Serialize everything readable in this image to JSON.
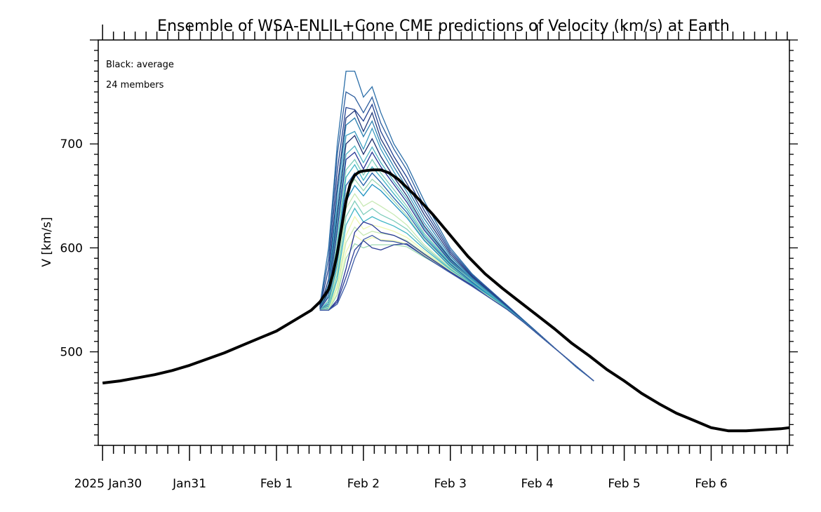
{
  "chart_data": {
    "type": "line",
    "title": "Ensemble of WSA-ENLIL+Cone CME predictions of Velocity (km/s) at Earth",
    "xlabel": "",
    "ylabel": "V [km/s]",
    "x_unit": "day",
    "x_ticks": [
      {
        "x": 0,
        "label": "2025 Jan30"
      },
      {
        "x": 1,
        "label": "Jan31"
      },
      {
        "x": 2,
        "label": "Feb 1"
      },
      {
        "x": 3,
        "label": "Feb 2"
      },
      {
        "x": 4,
        "label": "Feb 3"
      },
      {
        "x": 5,
        "label": "Feb 4"
      },
      {
        "x": 6,
        "label": "Feb 5"
      },
      {
        "x": 7,
        "label": "Feb 6"
      }
    ],
    "y_ticks": [
      500,
      600,
      700
    ],
    "xlim": [
      -0.05,
      7.9
    ],
    "ylim": [
      410,
      800
    ],
    "annotations": [
      "Black: average",
      "24 members"
    ],
    "average": {
      "color": "#000000",
      "x": [
        0,
        0.2,
        0.4,
        0.6,
        0.8,
        1.0,
        1.2,
        1.4,
        1.6,
        1.8,
        2.0,
        2.2,
        2.4,
        2.5,
        2.6,
        2.65,
        2.7,
        2.75,
        2.8,
        2.85,
        2.9,
        2.95,
        3.0,
        3.1,
        3.2,
        3.3,
        3.4,
        3.6,
        3.8,
        4.0,
        4.2,
        4.4,
        4.6,
        4.8,
        5.0,
        5.2,
        5.4,
        5.6,
        5.8,
        6.0,
        6.2,
        6.4,
        6.6,
        6.8,
        7.0,
        7.2,
        7.4,
        7.6,
        7.8,
        7.9
      ],
      "y": [
        470,
        472,
        475,
        478,
        482,
        487,
        493,
        499,
        506,
        513,
        520,
        530,
        540,
        548,
        560,
        575,
        595,
        620,
        645,
        662,
        670,
        673,
        674,
        675,
        675,
        672,
        666,
        650,
        632,
        612,
        592,
        575,
        561,
        548,
        535,
        522,
        508,
        496,
        483,
        472,
        460,
        450,
        441,
        434,
        427,
        424,
        424,
        425,
        426,
        427
      ]
    },
    "series": [
      {
        "color": "#2b6ea8",
        "values": [
          545,
          600,
          700,
          770,
          770,
          745,
          755,
          730,
          700,
          680,
          645,
          600,
          575,
          560,
          545,
          530,
          515,
          500,
          485,
          472
        ]
      },
      {
        "color": "#2e5e9e",
        "values": [
          544,
          590,
          690,
          750,
          745,
          730,
          745,
          720,
          695,
          675,
          640,
          598,
          574,
          560,
          545,
          530,
          515,
          500,
          486,
          472
        ]
      },
      {
        "color": "#1f3f8f",
        "values": [
          543,
          580,
          675,
          735,
          733,
          722,
          738,
          712,
          688,
          668,
          636,
          596,
          573,
          559,
          544,
          529,
          514,
          500,
          486,
          472
        ]
      },
      {
        "color": "#233a7a",
        "values": [
          542,
          570,
          660,
          725,
          732,
          712,
          730,
          705,
          683,
          662,
          632,
          594,
          572,
          558,
          543,
          529,
          514,
          500,
          486,
          472
        ]
      },
      {
        "color": "#2a7fb0",
        "values": [
          542,
          565,
          652,
          718,
          725,
          707,
          722,
          700,
          678,
          658,
          628,
          592,
          571,
          557,
          543,
          529,
          514,
          500,
          486,
          472
        ]
      },
      {
        "color": "#3a9bc0",
        "values": [
          541,
          560,
          640,
          708,
          712,
          695,
          715,
          695,
          673,
          654,
          624,
          590,
          570,
          556,
          542,
          528,
          514,
          500,
          486,
          472
        ]
      },
      {
        "color": "#1d2f6e",
        "values": [
          541,
          558,
          632,
          700,
          708,
          690,
          705,
          688,
          668,
          650,
          621,
          589,
          569,
          556,
          542,
          528,
          514,
          500,
          486,
          472
        ]
      },
      {
        "color": "#4fb3c2",
        "values": [
          541,
          555,
          625,
          690,
          698,
          682,
          697,
          682,
          664,
          647,
          619,
          588,
          569,
          556,
          542,
          528,
          514,
          500,
          486,
          472
        ]
      },
      {
        "color": "#253494",
        "values": [
          541,
          553,
          618,
          685,
          692,
          676,
          692,
          678,
          661,
          644,
          617,
          587,
          568,
          555,
          542,
          528,
          514,
          500,
          486,
          472
        ]
      },
      {
        "color": "#7fcdbb",
        "values": [
          540,
          550,
          610,
          675,
          685,
          670,
          685,
          672,
          656,
          640,
          614,
          586,
          568,
          555,
          542,
          528,
          514,
          500,
          486,
          472
        ]
      },
      {
        "color": "#41b6c4",
        "values": [
          540,
          548,
          602,
          668,
          680,
          665,
          678,
          668,
          652,
          637,
          612,
          585,
          567,
          555,
          542,
          528,
          514,
          500,
          486,
          472
        ]
      },
      {
        "color": "#225ea8",
        "values": [
          540,
          546,
          596,
          660,
          672,
          660,
          672,
          663,
          648,
          634,
          610,
          584,
          567,
          554,
          541,
          528,
          514,
          500,
          486,
          472
        ]
      },
      {
        "color": "#a1dab4",
        "values": [
          540,
          545,
          590,
          652,
          666,
          655,
          666,
          659,
          645,
          631,
          608,
          583,
          566,
          554,
          541,
          528,
          514,
          500,
          486,
          472
        ]
      },
      {
        "color": "#1d91c0",
        "values": [
          540,
          544,
          585,
          645,
          660,
          650,
          661,
          655,
          642,
          629,
          607,
          582,
          566,
          554,
          541,
          528,
          514,
          500,
          486,
          472
        ]
      },
      {
        "color": "#c7e9b4",
        "values": [
          540,
          543,
          580,
          638,
          652,
          640,
          645,
          640,
          632,
          622,
          603,
          581,
          565,
          553,
          541,
          528,
          514,
          500,
          486,
          472
        ]
      },
      {
        "color": "#7fcdbb",
        "values": [
          540,
          542,
          575,
          630,
          645,
          632,
          638,
          632,
          626,
          618,
          601,
          580,
          565,
          553,
          541,
          528,
          514,
          500,
          486,
          472
        ]
      },
      {
        "color": "#41b6c4",
        "values": [
          540,
          542,
          570,
          622,
          638,
          625,
          630,
          626,
          621,
          614,
          599,
          579,
          565,
          553,
          541,
          528,
          514,
          500,
          486,
          472
        ]
      },
      {
        "color": "#edf8b1",
        "values": [
          540,
          541,
          565,
          612,
          630,
          618,
          622,
          620,
          616,
          610,
          597,
          578,
          564,
          553,
          541,
          528,
          514,
          500,
          486,
          472
        ]
      },
      {
        "color": "#c7e9b4",
        "values": [
          540,
          541,
          562,
          605,
          620,
          612,
          616,
          614,
          612,
          607,
          595,
          578,
          564,
          553,
          541,
          528,
          514,
          500,
          486,
          472
        ]
      },
      {
        "color": "#edf8b1",
        "values": [
          540,
          540,
          558,
          596,
          612,
          606,
          610,
          608,
          607,
          604,
          593,
          577,
          564,
          552,
          541,
          528,
          514,
          500,
          486,
          472
        ]
      },
      {
        "color": "#a1dab4",
        "values": [
          540,
          540,
          555,
          590,
          604,
          600,
          603,
          603,
          603,
          601,
          591,
          577,
          564,
          552,
          541,
          528,
          514,
          500,
          486,
          472
        ]
      },
      {
        "color": "#253494",
        "values": [
          540,
          540,
          550,
          580,
          615,
          625,
          622,
          615,
          612,
          606,
          594,
          577,
          564,
          552,
          541,
          528,
          514,
          500,
          486,
          472
        ]
      },
      {
        "color": "#2c3e96",
        "values": [
          540,
          540,
          548,
          572,
          598,
          607,
          600,
          598,
          603,
          604,
          592,
          576,
          563,
          552,
          541,
          528,
          514,
          500,
          486,
          472
        ]
      },
      {
        "color": "#3b5aa5",
        "values": [
          540,
          540,
          546,
          565,
          590,
          608,
          612,
          607,
          606,
          603,
          592,
          576,
          563,
          552,
          541,
          528,
          514,
          500,
          486,
          472
        ]
      }
    ],
    "series_x": [
      2.5,
      2.6,
      2.7,
      2.8,
      2.9,
      3.0,
      3.1,
      3.2,
      3.35,
      3.5,
      3.7,
      4.0,
      4.25,
      4.45,
      4.65,
      4.85,
      5.05,
      5.25,
      5.45,
      5.65
    ]
  }
}
